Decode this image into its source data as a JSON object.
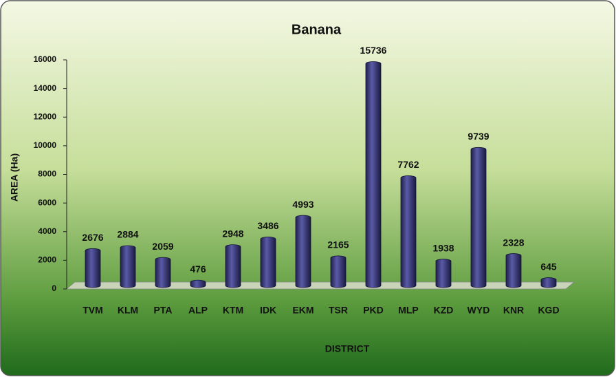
{
  "chart_data": {
    "type": "bar",
    "title": "Banana",
    "x_label": "DISTRICT",
    "y_label": "AREA (Ha)",
    "categories": [
      "TVM",
      "KLM",
      "PTA",
      "ALP",
      "KTM",
      "IDK",
      "EKM",
      "TSR",
      "PKD",
      "MLP",
      "KZD",
      "WYD",
      "KNR",
      "KGD"
    ],
    "values": [
      2676,
      2884,
      2059,
      476,
      2948,
      3486,
      4993,
      2165,
      15736,
      7762,
      1938,
      9739,
      2328,
      645
    ],
    "color": "#3d3d80",
    "ylim": [
      0,
      16000
    ],
    "yticks": [
      0,
      2000,
      4000,
      6000,
      8000,
      10000,
      12000,
      14000,
      16000
    ],
    "grid": false
  }
}
